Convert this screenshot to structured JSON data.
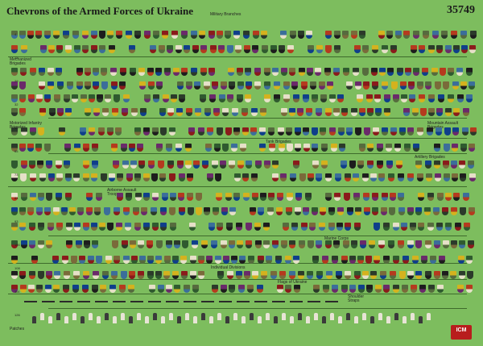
{
  "title": "Chevrons of the Armed Forces of Ukraine",
  "product_code": "35749",
  "logo_text": "ICM",
  "section_labels": {
    "military_branches": "Military Branches",
    "mechanized_brigades": "Mechanized Brigades",
    "motorized_infantry_brigades": "Motorized Infantry Brigades",
    "mountain_assault_brigades": "Mountain Assault Brigades",
    "tank_brigades": "Tank Brigades",
    "artillery_brigades": "Artillery Brigades",
    "airborne_assault_troops": "Airborne Assault Troops",
    "marine_corps": "Marine Corps",
    "individual_divisions": "Individual Divisions",
    "flags_of_ukraine": "Flags of Ukraine",
    "shoulder_straps": "Shoulder Straps",
    "patches": "Patches"
  },
  "row_numbers": [
    "4",
    "11",
    "29",
    "32",
    "39",
    "65",
    "73",
    "84",
    "93",
    "100",
    "108",
    "114",
    "126"
  ],
  "palette": [
    "#2b3a2a",
    "#0f3f8a",
    "#d4b21e",
    "#8a1b1b",
    "#1d1d1d",
    "#566b3e",
    "#3b6e9a",
    "#b53a1e",
    "#7a6a3a",
    "#e6e0c8",
    "#2f5a2f",
    "#6a2a6a"
  ]
}
